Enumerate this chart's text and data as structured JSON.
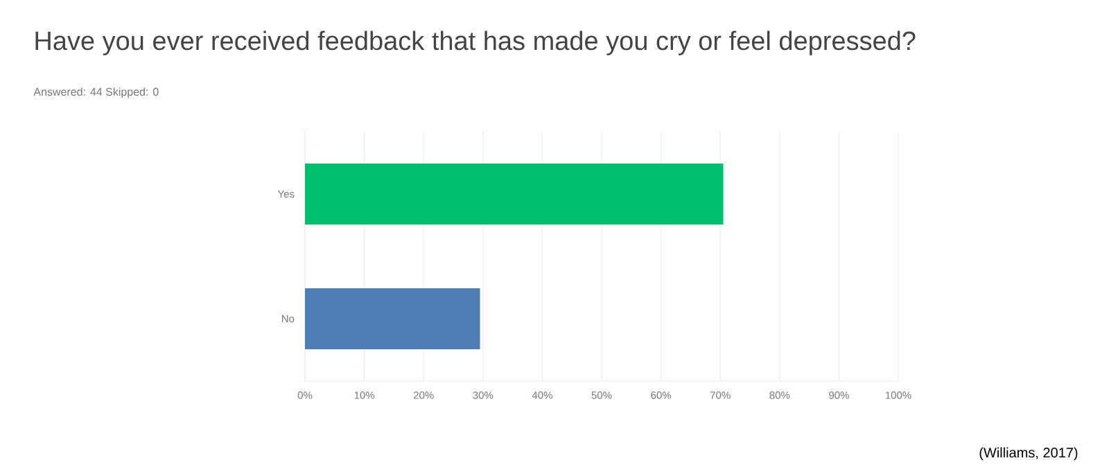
{
  "chart_data": {
    "type": "bar",
    "orientation": "horizontal",
    "title": "Have you ever received feedback that has made you cry or feel depressed?",
    "subtitle": "Answered: 44    Skipped: 0",
    "annotations": [
      "(Williams, 2017)"
    ],
    "categories": [
      "Yes",
      "No"
    ],
    "values": [
      70.5,
      29.5
    ],
    "colors": [
      "#00bf6f",
      "#507cb6"
    ],
    "xlim": [
      0,
      100
    ],
    "xticks": [
      {
        "value": 0,
        "label": "0%"
      },
      {
        "value": 10,
        "label": "10%"
      },
      {
        "value": 20,
        "label": "20%"
      },
      {
        "value": 30,
        "label": "30%"
      },
      {
        "value": 40,
        "label": "40%"
      },
      {
        "value": 50,
        "label": "50%"
      },
      {
        "value": 60,
        "label": "60%"
      },
      {
        "value": 70,
        "label": "70%"
      },
      {
        "value": 80,
        "label": "80%"
      },
      {
        "value": 90,
        "label": "90%"
      },
      {
        "value": 100,
        "label": "100%"
      }
    ],
    "grid": "x"
  }
}
